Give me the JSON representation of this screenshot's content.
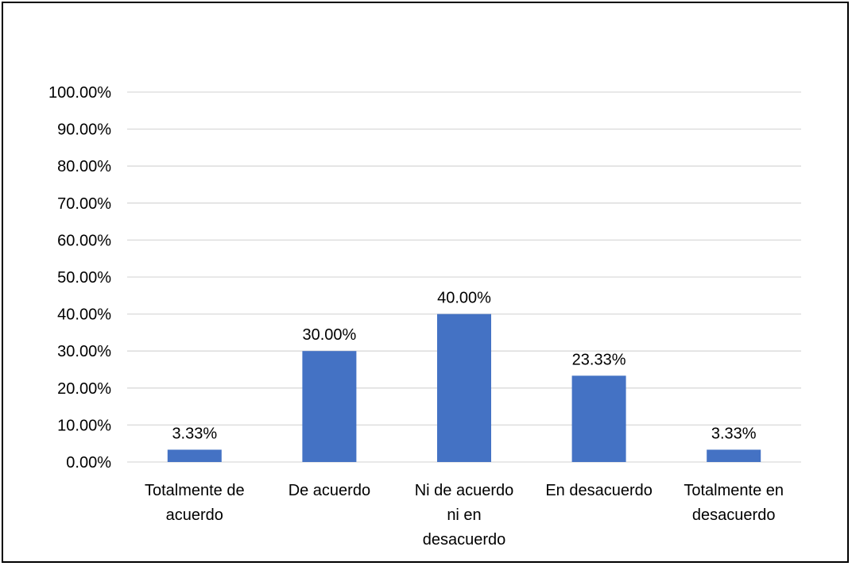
{
  "chart_data": {
    "type": "bar",
    "title": "",
    "xlabel": "",
    "ylabel": "",
    "categories": [
      [
        "Totalmente de",
        "acuerdo"
      ],
      [
        "De acuerdo"
      ],
      [
        "Ni de acuerdo",
        "ni en",
        "desacuerdo"
      ],
      [
        "En desacuerdo"
      ],
      [
        "Totalmente en",
        "desacuerdo"
      ]
    ],
    "values": [
      3.33,
      30.0,
      40.0,
      23.33,
      3.33
    ],
    "data_labels": [
      "3.33%",
      "30.00%",
      "40.00%",
      "23.33%",
      "3.33%"
    ],
    "ylim": [
      0,
      100
    ],
    "yticks": [
      0,
      10,
      20,
      30,
      40,
      50,
      60,
      70,
      80,
      90,
      100
    ],
    "ytick_labels": [
      "0.00%",
      "10.00%",
      "20.00%",
      "30.00%",
      "40.00%",
      "50.00%",
      "60.00%",
      "70.00%",
      "80.00%",
      "90.00%",
      "100.00%"
    ],
    "grid": true,
    "legend": "none",
    "colors": {
      "bar": "#4472C4",
      "grid": "#D9D9D9",
      "axis": "#D9D9D9",
      "border": "#000000"
    }
  }
}
